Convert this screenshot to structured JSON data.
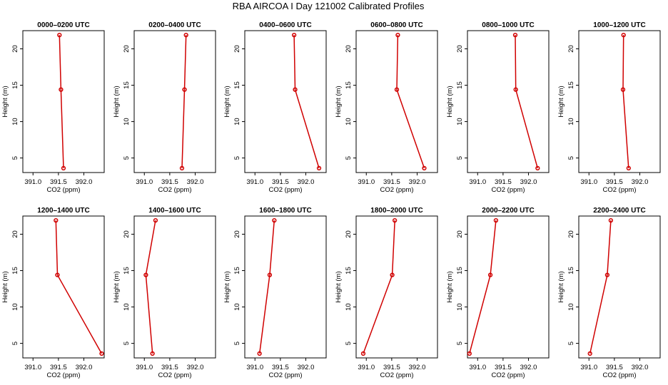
{
  "figure": {
    "title": "RBA AIRCOA I  Day 121002  Calibrated Profiles"
  },
  "chart_data": [
    {
      "type": "line",
      "title": "0000–0200 UTC",
      "xlabel": "CO2 (ppm)",
      "ylabel": "Height (m)",
      "xlim": [
        390.8,
        392.4
      ],
      "ylim": [
        3,
        22.5
      ],
      "xticks": [
        391.0,
        391.5,
        392.0
      ],
      "yticks": [
        5,
        10,
        15,
        20
      ],
      "series": [
        {
          "x": [
            391.52,
            391.55,
            391.6
          ],
          "y": [
            21.9,
            14.4,
            3.6
          ]
        }
      ]
    },
    {
      "type": "line",
      "title": "0200–0400 UTC",
      "xlabel": "CO2 (ppm)",
      "ylabel": "Height (m)",
      "xlim": [
        390.8,
        392.4
      ],
      "ylim": [
        3,
        22.5
      ],
      "xticks": [
        391.0,
        391.5,
        392.0
      ],
      "yticks": [
        5,
        10,
        15,
        20
      ],
      "series": [
        {
          "x": [
            391.82,
            391.79,
            391.74
          ],
          "y": [
            21.9,
            14.4,
            3.6
          ]
        }
      ]
    },
    {
      "type": "line",
      "title": "0400–0600 UTC",
      "xlabel": "CO2 (ppm)",
      "ylabel": "Height (m)",
      "xlim": [
        390.8,
        392.4
      ],
      "ylim": [
        3,
        22.5
      ],
      "xticks": [
        391.0,
        391.5,
        392.0
      ],
      "yticks": [
        5,
        10,
        15,
        20
      ],
      "series": [
        {
          "x": [
            391.77,
            391.79,
            392.26
          ],
          "y": [
            21.9,
            14.4,
            3.6
          ]
        }
      ]
    },
    {
      "type": "line",
      "title": "0600–0800 UTC",
      "xlabel": "CO2 (ppm)",
      "ylabel": "Height (m)",
      "xlim": [
        390.8,
        392.4
      ],
      "ylim": [
        3,
        22.5
      ],
      "xticks": [
        391.0,
        391.5,
        392.0
      ],
      "yticks": [
        5,
        10,
        15,
        20
      ],
      "series": [
        {
          "x": [
            391.62,
            391.6,
            392.14
          ],
          "y": [
            21.9,
            14.4,
            3.6
          ]
        }
      ]
    },
    {
      "type": "line",
      "title": "0800–1000 UTC",
      "xlabel": "CO2 (ppm)",
      "ylabel": "Height (m)",
      "xlim": [
        390.8,
        392.4
      ],
      "ylim": [
        3,
        22.5
      ],
      "xticks": [
        391.0,
        391.5,
        392.0
      ],
      "yticks": [
        5,
        10,
        15,
        20
      ],
      "series": [
        {
          "x": [
            391.74,
            391.75,
            392.18
          ],
          "y": [
            21.9,
            14.4,
            3.6
          ]
        }
      ]
    },
    {
      "type": "line",
      "title": "1000–1200 UTC",
      "xlabel": "CO2 (ppm)",
      "ylabel": "Height (m)",
      "xlim": [
        390.8,
        392.4
      ],
      "ylim": [
        3,
        22.5
      ],
      "xticks": [
        391.0,
        391.5,
        392.0
      ],
      "yticks": [
        5,
        10,
        15,
        20
      ],
      "series": [
        {
          "x": [
            391.68,
            391.67,
            391.78
          ],
          "y": [
            21.9,
            14.4,
            3.6
          ]
        }
      ]
    },
    {
      "type": "line",
      "title": "1200–1400 UTC",
      "xlabel": "CO2 (ppm)",
      "ylabel": "Height (m)",
      "xlim": [
        390.8,
        392.4
      ],
      "ylim": [
        3,
        22.5
      ],
      "xticks": [
        391.0,
        391.5,
        392.0
      ],
      "yticks": [
        5,
        10,
        15,
        20
      ],
      "series": [
        {
          "x": [
            391.45,
            391.48,
            392.35
          ],
          "y": [
            21.9,
            14.4,
            3.6
          ]
        }
      ]
    },
    {
      "type": "line",
      "title": "1400–1600 UTC",
      "xlabel": "CO2 (ppm)",
      "ylabel": "Height (m)",
      "xlim": [
        390.8,
        392.4
      ],
      "ylim": [
        3,
        22.5
      ],
      "xticks": [
        391.0,
        391.5,
        392.0
      ],
      "yticks": [
        5,
        10,
        15,
        20
      ],
      "series": [
        {
          "x": [
            391.22,
            391.03,
            391.16
          ],
          "y": [
            21.9,
            14.4,
            3.6
          ]
        }
      ]
    },
    {
      "type": "line",
      "title": "1600–1800 UTC",
      "xlabel": "CO2 (ppm)",
      "ylabel": "Height (m)",
      "xlim": [
        390.8,
        392.4
      ],
      "ylim": [
        3,
        22.5
      ],
      "xticks": [
        391.0,
        391.5,
        392.0
      ],
      "yticks": [
        5,
        10,
        15,
        20
      ],
      "series": [
        {
          "x": [
            391.38,
            391.29,
            391.09
          ],
          "y": [
            21.9,
            14.4,
            3.6
          ]
        }
      ]
    },
    {
      "type": "line",
      "title": "1800–2000 UTC",
      "xlabel": "CO2 (ppm)",
      "ylabel": "Height (m)",
      "xlim": [
        390.8,
        392.4
      ],
      "ylim": [
        3,
        22.5
      ],
      "xticks": [
        391.0,
        391.5,
        392.0
      ],
      "yticks": [
        5,
        10,
        15,
        20
      ],
      "series": [
        {
          "x": [
            391.56,
            391.51,
            390.94
          ],
          "y": [
            21.9,
            14.4,
            3.6
          ]
        }
      ]
    },
    {
      "type": "line",
      "title": "2000–2200 UTC",
      "xlabel": "CO2 (ppm)",
      "ylabel": "Height (m)",
      "xlim": [
        390.8,
        392.4
      ],
      "ylim": [
        3,
        22.5
      ],
      "xticks": [
        391.0,
        391.5,
        392.0
      ],
      "yticks": [
        5,
        10,
        15,
        20
      ],
      "series": [
        {
          "x": [
            391.36,
            391.25,
            390.84
          ],
          "y": [
            21.9,
            14.4,
            3.6
          ]
        }
      ]
    },
    {
      "type": "line",
      "title": "2200–2400 UTC",
      "xlabel": "CO2 (ppm)",
      "ylabel": "Height (m)",
      "xlim": [
        390.8,
        392.4
      ],
      "ylim": [
        3,
        22.5
      ],
      "xticks": [
        391.0,
        391.5,
        392.0
      ],
      "yticks": [
        5,
        10,
        15,
        20
      ],
      "series": [
        {
          "x": [
            391.43,
            391.36,
            391.02
          ],
          "y": [
            21.9,
            14.4,
            3.6
          ]
        }
      ]
    }
  ]
}
